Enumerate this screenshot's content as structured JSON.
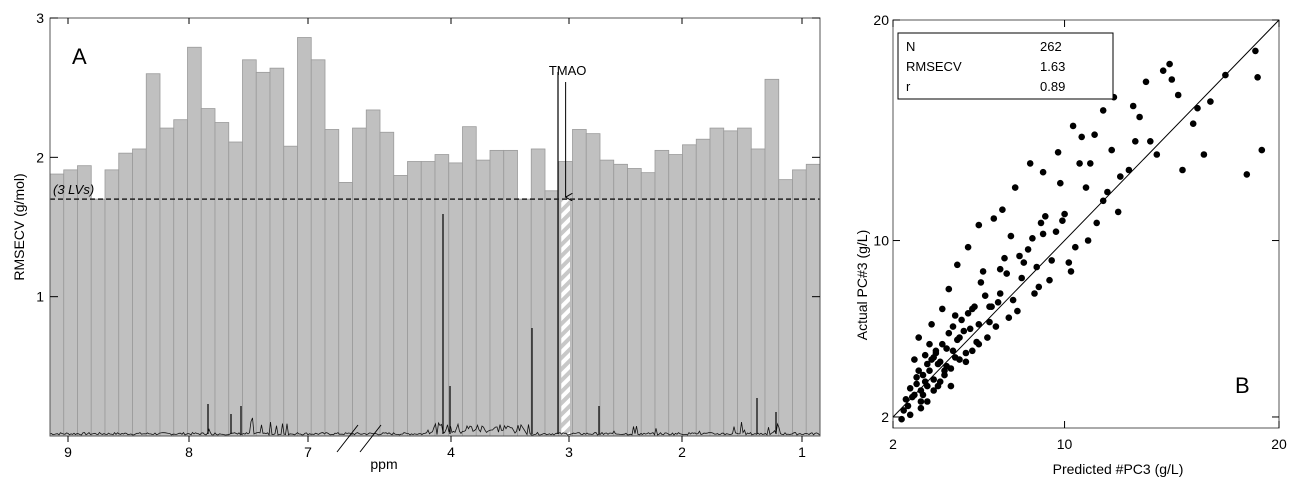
{
  "chart_data": [
    {
      "type": "bar",
      "panel": "A",
      "ylabel": "RMSECV (g/mol)",
      "xlabel": "ppm",
      "ylim": [
        0,
        3
      ],
      "yticks": [
        "1",
        "2",
        "3"
      ],
      "xticks": [
        "9",
        "8",
        "7",
        "4",
        "3",
        "2",
        "1"
      ],
      "threshold": {
        "value": 1.7,
        "label": "(3 LVs)"
      },
      "highlight": {
        "label": "TMAO",
        "index": 37
      },
      "bar_color": "#c0c0c0",
      "bar_edge_color": "#9a9a9a",
      "values": [
        1.88,
        1.91,
        1.94,
        1.7,
        1.91,
        2.03,
        2.06,
        2.6,
        2.21,
        2.27,
        2.79,
        2.35,
        2.25,
        2.11,
        2.7,
        2.61,
        2.64,
        2.08,
        2.86,
        2.7,
        2.2,
        1.82,
        2.21,
        2.34,
        2.18,
        1.87,
        1.97,
        1.97,
        2.02,
        1.96,
        2.22,
        1.98,
        2.05,
        2.05,
        1.7,
        2.06,
        1.76,
        1.97,
        2.2,
        2.17,
        1.98,
        1.95,
        1.92,
        1.89,
        2.05,
        2.02,
        2.09,
        2.13,
        2.21,
        2.19,
        2.21,
        2.06,
        2.56,
        1.84,
        1.91,
        1.95
      ]
    },
    {
      "type": "scatter",
      "panel": "B",
      "xlabel": "Predicted #PC3 (g/L)",
      "ylabel": "Actual PC#3  (g/L)",
      "xticks": [
        "2",
        "10",
        "20"
      ],
      "yticks": [
        "2",
        "10",
        "20"
      ],
      "xlim": [
        2,
        20
      ],
      "ylim": [
        1.5,
        20
      ],
      "stats": [
        {
          "label": "N",
          "value": "262"
        },
        {
          "label": "RMSECV",
          "value": "1.63"
        },
        {
          "label": "r",
          "value": "0.89"
        }
      ],
      "trend_line": {
        "x": [
          2,
          20
        ],
        "y": [
          2,
          20
        ]
      },
      "points": [
        [
          3.1,
          3.5
        ],
        [
          3.4,
          3.9
        ],
        [
          3.6,
          4.4
        ],
        [
          3.2,
          4.1
        ],
        [
          3.8,
          4.6
        ],
        [
          4.0,
          5.0
        ],
        [
          4.3,
          5.3
        ],
        [
          3.5,
          4.8
        ],
        [
          3.9,
          3.7
        ],
        [
          4.6,
          5.8
        ],
        [
          4.1,
          4.4
        ],
        [
          3.3,
          3.2
        ],
        [
          4.8,
          6.1
        ],
        [
          5.0,
          5.5
        ],
        [
          4.4,
          3.9
        ],
        [
          5.2,
          6.4
        ],
        [
          3.7,
          5.3
        ],
        [
          4.5,
          5.1
        ],
        [
          5.5,
          6.7
        ],
        [
          4.2,
          3.6
        ],
        [
          5.8,
          7.0
        ],
        [
          4.9,
          4.7
        ],
        [
          6.0,
          6.2
        ],
        [
          3.0,
          3.0
        ],
        [
          5.3,
          5.9
        ],
        [
          6.3,
          7.5
        ],
        [
          4.7,
          4.2
        ],
        [
          5.6,
          6.0
        ],
        [
          6.6,
          7.0
        ],
        [
          3.6,
          3.4
        ],
        [
          6.1,
          8.1
        ],
        [
          7.0,
          7.6
        ],
        [
          5.1,
          4.6
        ],
        [
          7.3,
          8.5
        ],
        [
          6.5,
          6.3
        ],
        [
          7.6,
          7.3
        ],
        [
          4.0,
          4.9
        ],
        [
          8.0,
          8.3
        ],
        [
          5.9,
          5.4
        ],
        [
          8.3,
          9.6
        ],
        [
          6.8,
          6.1
        ],
        [
          8.7,
          8.8
        ],
        [
          7.2,
          9.2
        ],
        [
          9.0,
          10.3
        ],
        [
          7.8,
          6.8
        ],
        [
          9.4,
          9.1
        ],
        [
          6.2,
          8.6
        ],
        [
          10.0,
          11.2
        ],
        [
          8.6,
          7.6
        ],
        [
          10.5,
          9.7
        ],
        [
          9.3,
          8.2
        ],
        [
          11.0,
          12.4
        ],
        [
          7.5,
          10.2
        ],
        [
          11.5,
          10.8
        ],
        [
          10.2,
          9.0
        ],
        [
          12.0,
          12.2
        ],
        [
          8.9,
          10.8
        ],
        [
          12.5,
          11.3
        ],
        [
          11.2,
          13.5
        ],
        [
          13.0,
          13.2
        ],
        [
          9.8,
          12.6
        ],
        [
          13.5,
          15.6
        ],
        [
          12.2,
          14.1
        ],
        [
          14.0,
          14.5
        ],
        [
          10.8,
          14.7
        ],
        [
          14.6,
          17.7
        ],
        [
          13.2,
          16.1
        ],
        [
          15.3,
          16.6
        ],
        [
          11.8,
          15.9
        ],
        [
          16.0,
          15.3
        ],
        [
          15.0,
          17.3
        ],
        [
          16.8,
          16.3
        ],
        [
          17.5,
          17.5
        ],
        [
          18.9,
          18.6
        ],
        [
          19.0,
          17.4
        ],
        [
          19.2,
          14.1
        ],
        [
          18.5,
          13.0
        ],
        [
          16.5,
          13.9
        ],
        [
          2.7,
          2.5
        ],
        [
          2.9,
          2.9
        ],
        [
          3.3,
          2.7
        ],
        [
          2.5,
          2.3
        ],
        [
          2.8,
          3.3
        ],
        [
          3.4,
          3.0
        ],
        [
          3.9,
          3.2
        ],
        [
          2.6,
          2.8
        ],
        [
          4.4,
          4.1
        ],
        [
          3.0,
          4.6
        ],
        [
          4.7,
          3.4
        ],
        [
          5.4,
          4.9
        ],
        [
          3.2,
          5.6
        ],
        [
          5.7,
          5.0
        ],
        [
          3.8,
          6.2
        ],
        [
          6.4,
          5.6
        ],
        [
          4.3,
          6.9
        ],
        [
          6.9,
          7.2
        ],
        [
          4.6,
          7.8
        ],
        [
          7.4,
          6.5
        ],
        [
          5.0,
          8.9
        ],
        [
          8.1,
          9.0
        ],
        [
          5.5,
          9.7
        ],
        [
          8.8,
          7.9
        ],
        [
          6.0,
          10.7
        ],
        [
          9.6,
          10.4
        ],
        [
          6.7,
          11.0
        ],
        [
          10.3,
          8.6
        ],
        [
          7.1,
          11.4
        ],
        [
          11.1,
          10.0
        ],
        [
          7.7,
          12.4
        ],
        [
          11.8,
          11.8
        ],
        [
          8.4,
          13.5
        ],
        [
          12.6,
          12.9
        ],
        [
          9.0,
          13.1
        ],
        [
          13.3,
          14.5
        ],
        [
          9.7,
          14.0
        ],
        [
          14.3,
          13.9
        ],
        [
          10.4,
          15.2
        ],
        [
          15.5,
          13.2
        ],
        [
          3.5,
          3.6
        ],
        [
          3.7,
          4.1
        ],
        [
          4.2,
          4.5
        ],
        [
          4.5,
          4.3
        ],
        [
          3.1,
          3.8
        ],
        [
          3.9,
          4.7
        ],
        [
          4.8,
          5.0
        ],
        [
          5.1,
          5.6
        ],
        [
          4.1,
          3.4
        ],
        [
          5.4,
          4.5
        ],
        [
          3.6,
          2.7
        ],
        [
          6.0,
          5.3
        ],
        [
          2.4,
          1.9
        ],
        [
          2.8,
          2.1
        ],
        [
          3.3,
          2.4
        ],
        [
          4.9,
          6.6
        ],
        [
          5.7,
          6.9
        ],
        [
          6.5,
          7.0
        ],
        [
          7.0,
          8.7
        ],
        [
          7.9,
          9.3
        ],
        [
          8.5,
          10.1
        ],
        [
          9.1,
          11.1
        ],
        [
          9.9,
          10.9
        ],
        [
          10.7,
          13.5
        ],
        [
          11.4,
          14.8
        ],
        [
          12.3,
          16.5
        ],
        [
          13.8,
          17.2
        ],
        [
          14.9,
          18.0
        ],
        [
          16.2,
          16.0
        ]
      ]
    }
  ]
}
